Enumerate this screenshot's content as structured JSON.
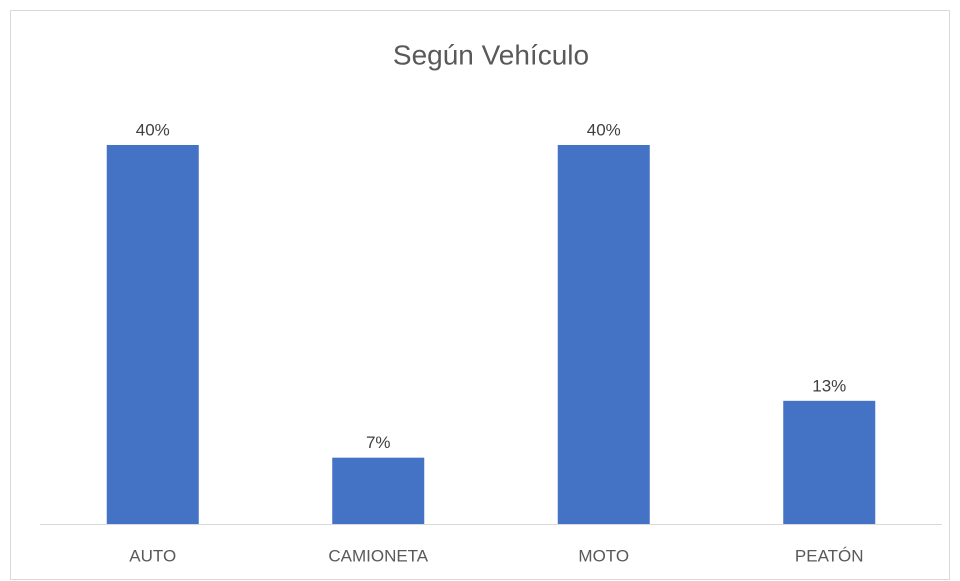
{
  "chart_data": {
    "type": "bar",
    "title": "Según Vehículo",
    "categories": [
      "AUTO",
      "CAMIONETA",
      "MOTO",
      "PEATÓN"
    ],
    "values": [
      40,
      7,
      40,
      13
    ],
    "value_labels": [
      "40%",
      "7%",
      "40%",
      "13%"
    ],
    "color": "#4472c4"
  }
}
